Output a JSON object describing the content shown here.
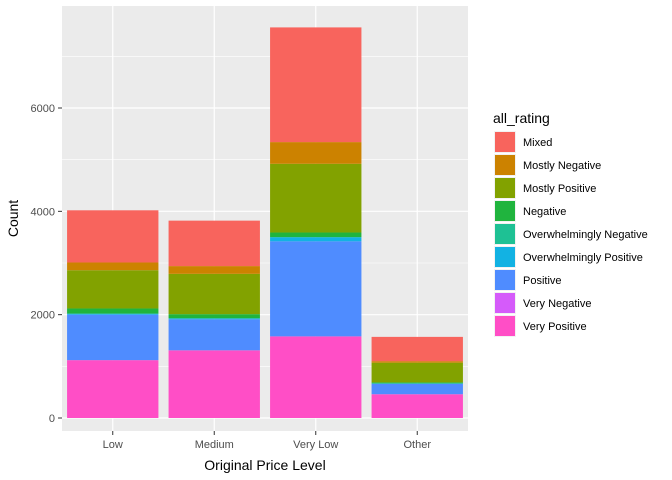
{
  "chart_data": {
    "type": "bar",
    "stacked": true,
    "xlabel": "Original Price Level",
    "ylabel": "Count",
    "categories": [
      "Low",
      "Medium",
      "Very Low",
      "Other"
    ],
    "ylim": [
      0,
      7850
    ],
    "yticks": [
      0,
      2000,
      4000,
      6000
    ],
    "grid": true,
    "legend": {
      "title": "all_rating",
      "placement": "right"
    },
    "series": [
      {
        "name": "Very Positive",
        "color": "#FF4EC6",
        "values": [
          1120,
          1310,
          1580,
          460
        ]
      },
      {
        "name": "Very Negative",
        "color": "#D55BFA",
        "values": [
          0,
          0,
          0,
          0
        ]
      },
      {
        "name": "Positive",
        "color": "#4F8CFF",
        "values": [
          880,
          600,
          1840,
          200
        ]
      },
      {
        "name": "Overwhelmingly Positive",
        "color": "#12B2E3",
        "values": [
          20,
          20,
          80,
          10
        ]
      },
      {
        "name": "Overwhelmingly Negative",
        "color": "#1EC194",
        "values": [
          0,
          0,
          0,
          0
        ]
      },
      {
        "name": "Negative",
        "color": "#20B43E",
        "values": [
          100,
          80,
          90,
          20
        ]
      },
      {
        "name": "Mostly Positive",
        "color": "#82A200",
        "values": [
          740,
          780,
          1330,
          380
        ]
      },
      {
        "name": "Mostly Negative",
        "color": "#CC8200",
        "values": [
          150,
          150,
          420,
          30
        ]
      },
      {
        "name": "Mixed",
        "color": "#F8645D",
        "values": [
          1010,
          880,
          2220,
          470
        ]
      }
    ],
    "legend_order": [
      "Mixed",
      "Mostly Negative",
      "Mostly Positive",
      "Negative",
      "Overwhelmingly Negative",
      "Overwhelmingly Positive",
      "Positive",
      "Very Negative",
      "Very Positive"
    ]
  }
}
